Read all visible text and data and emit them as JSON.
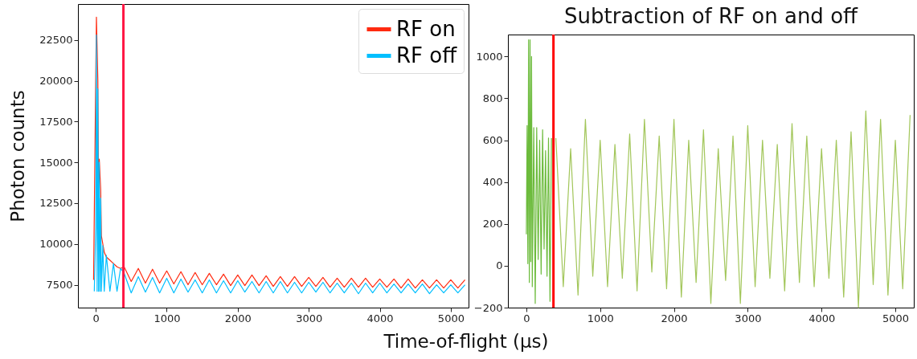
{
  "chart_data": [
    {
      "type": "line",
      "xlabel": "Time-of-flight (µs)",
      "ylabel": "Photon counts",
      "xlim": [
        -250,
        5250
      ],
      "xticks": [
        0,
        1000,
        2000,
        3000,
        4000,
        5000
      ],
      "ylim": [
        6100,
        24700
      ],
      "yticks": [
        7500,
        10000,
        12500,
        15000,
        17500,
        20000,
        22500
      ],
      "grid": false,
      "legend": "top right",
      "series": [
        {
          "name": "RF on",
          "color": "#ff2a10",
          "x": [
            -30,
            10,
            30,
            40,
            50,
            70,
            80,
            100,
            120,
            150,
            200,
            250,
            300,
            350,
            400,
            500,
            600,
            700,
            800,
            900,
            1000,
            1100,
            1200,
            1300,
            1400,
            1500,
            1600,
            1700,
            1800,
            1900,
            2000,
            2100,
            2200,
            2300,
            2400,
            2500,
            2600,
            2700,
            2800,
            2900,
            3000,
            3100,
            3200,
            3300,
            3400,
            3500,
            3600,
            3700,
            3800,
            3900,
            4000,
            4100,
            4200,
            4300,
            4400,
            4500,
            4600,
            4700,
            4800,
            4900,
            5000,
            5100,
            5200
          ],
          "values": [
            7800,
            23900,
            20000,
            13000,
            15200,
            13300,
            10500,
            10000,
            9500,
            9200,
            9000,
            8800,
            8600,
            8500,
            8600,
            7700,
            8500,
            7600,
            8450,
            7600,
            8350,
            7550,
            8300,
            7500,
            8250,
            7500,
            8200,
            7500,
            8150,
            7450,
            8100,
            7450,
            8100,
            7450,
            8050,
            7400,
            8000,
            7400,
            8000,
            7400,
            7950,
            7400,
            7950,
            7350,
            7900,
            7350,
            7900,
            7350,
            7900,
            7350,
            7850,
            7350,
            7850,
            7300,
            7850,
            7300,
            7800,
            7300,
            7800,
            7300,
            7800,
            7300,
            7800
          ]
        },
        {
          "name": "RF off",
          "color": "#00bfff",
          "x": [
            -20,
            0,
            10,
            20,
            30,
            40,
            50,
            60,
            70,
            80,
            100,
            120,
            150,
            200,
            250,
            300,
            350,
            400,
            500,
            600,
            700,
            800,
            900,
            1000,
            1100,
            1200,
            1300,
            1400,
            1500,
            1600,
            1700,
            1800,
            1900,
            2000,
            2100,
            2200,
            2300,
            2400,
            2500,
            2600,
            2700,
            2800,
            2900,
            3000,
            3100,
            3200,
            3300,
            3400,
            3500,
            3600,
            3700,
            3800,
            3900,
            4000,
            4100,
            4200,
            4300,
            4400,
            4500,
            4600,
            4700,
            4800,
            4900,
            5000,
            5100,
            5200
          ],
          "values": [
            7100,
            11000,
            22800,
            7100,
            19500,
            7100,
            15000,
            7100,
            12800,
            7100,
            9900,
            7100,
            9300,
            7100,
            8800,
            7100,
            8500,
            8200,
            7000,
            8000,
            7050,
            7950,
            7000,
            7900,
            7000,
            7850,
            7050,
            7800,
            7000,
            7800,
            7000,
            7750,
            7000,
            7750,
            7050,
            7700,
            7000,
            7700,
            7000,
            7700,
            7000,
            7650,
            7000,
            7650,
            7050,
            7650,
            7000,
            7600,
            7000,
            7600,
            6950,
            7600,
            7000,
            7600,
            7000,
            7550,
            7000,
            7550,
            7000,
            7550,
            6950,
            7500,
            7000,
            7500,
            7000,
            7500
          ]
        }
      ],
      "ref_lines": [
        {
          "axis": "x",
          "value": 390,
          "color": "#ff1744"
        }
      ]
    },
    {
      "type": "line",
      "title": "Subtraction of RF on and off",
      "xlim": [
        -250,
        5250
      ],
      "xticks": [
        0,
        1000,
        2000,
        3000,
        4000,
        5000
      ],
      "ylim": [
        -200,
        1105
      ],
      "yticks": [
        -200,
        0,
        200,
        400,
        600,
        800,
        1000
      ],
      "grid": false,
      "series": [
        {
          "color": "#6cbb3c",
          "x": [
            0,
            10,
            20,
            30,
            40,
            50,
            60,
            70,
            80,
            100,
            120,
            140,
            160,
            180,
            200,
            220,
            240,
            260,
            280,
            300,
            320,
            340
          ],
          "values": [
            150,
            670,
            10,
            1080,
            -80,
            1080,
            20,
            1000,
            -100,
            660,
            -180,
            660,
            30,
            600,
            -40,
            650,
            80,
            550,
            -50,
            610,
            -170,
            610
          ]
        },
        {
          "color": "#a2c65a",
          "x": [
            400,
            500,
            600,
            700,
            800,
            900,
            1000,
            1100,
            1200,
            1300,
            1400,
            1500,
            1600,
            1700,
            1800,
            1900,
            2000,
            2100,
            2200,
            2300,
            2400,
            2500,
            2600,
            2700,
            2800,
            2900,
            3000,
            3100,
            3200,
            3300,
            3400,
            3500,
            3600,
            3700,
            3800,
            3900,
            4000,
            4100,
            4200,
            4300,
            4400,
            4500,
            4600,
            4700,
            4800,
            4900,
            5000,
            5100,
            5200
          ],
          "values": [
            610,
            -100,
            560,
            -140,
            700,
            -50,
            600,
            -100,
            580,
            -60,
            630,
            -120,
            700,
            -30,
            620,
            -110,
            700,
            -150,
            600,
            -80,
            650,
            -180,
            560,
            -70,
            620,
            -180,
            670,
            -100,
            600,
            -60,
            580,
            -120,
            680,
            -80,
            620,
            -100,
            560,
            -60,
            600,
            -150,
            640,
            -200,
            740,
            -90,
            700,
            -140,
            600,
            -110,
            720
          ]
        }
      ],
      "ref_lines": [
        {
          "axis": "x",
          "value": 367,
          "color": "#ff0000"
        }
      ]
    }
  ]
}
